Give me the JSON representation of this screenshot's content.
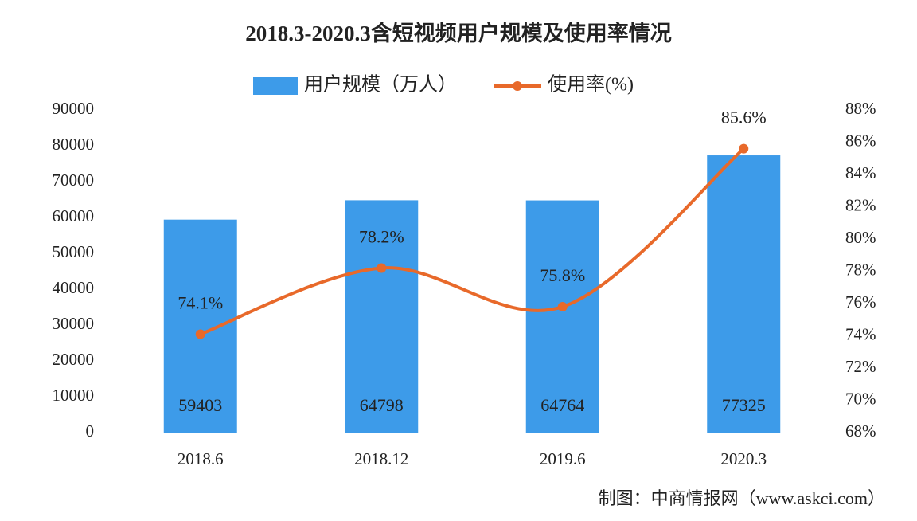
{
  "chart_data": {
    "type": "bar_line",
    "title": "2018.3-2020.3含短视频用户规模及使用率情况",
    "categories": [
      "2018.6",
      "2018.12",
      "2019.6",
      "2020.3"
    ],
    "series": [
      {
        "name": "用户规模（万人）",
        "color": "#3d9be9",
        "type": "bar",
        "values": [
          59403,
          64798,
          64764,
          77325
        ]
      },
      {
        "name": "使用率(%)",
        "color": "#e8692a",
        "type": "line",
        "axis": "y2",
        "values": [
          74.1,
          78.2,
          75.8,
          85.6
        ],
        "value_labels": [
          "74.1%",
          "78.2%",
          "75.8%",
          "85.6%"
        ]
      }
    ],
    "ylim": [
      0,
      90000
    ],
    "yticks": [
      0,
      10000,
      20000,
      30000,
      40000,
      50000,
      60000,
      70000,
      80000,
      90000
    ],
    "y2lim": [
      68,
      88
    ],
    "y2ticks": [
      {
        "value": 68,
        "label": "68%"
      },
      {
        "value": 70,
        "label": "70%"
      },
      {
        "value": 72,
        "label": "72%"
      },
      {
        "value": 74,
        "label": "74%"
      },
      {
        "value": 76,
        "label": "76%"
      },
      {
        "value": 78,
        "label": "78%"
      },
      {
        "value": 80,
        "label": "80%"
      },
      {
        "value": 82,
        "label": "82%"
      },
      {
        "value": 84,
        "label": "84%"
      },
      {
        "value": 86,
        "label": "86%"
      },
      {
        "value": 88,
        "label": "88%"
      }
    ],
    "legend": "top",
    "source": "制图：中商情报网（www.askci.com）"
  }
}
